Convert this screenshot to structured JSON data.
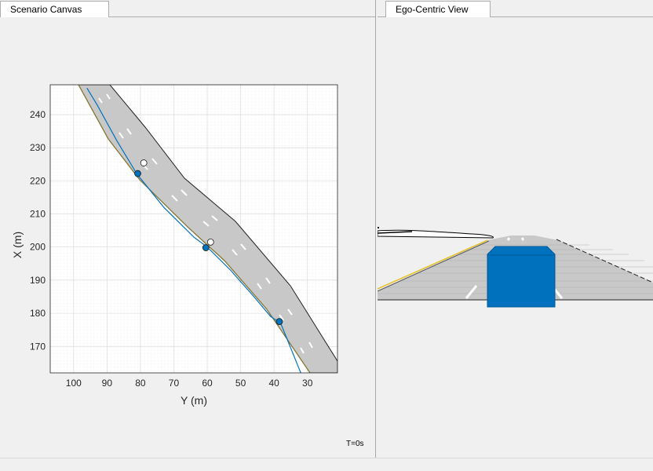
{
  "tabs": {
    "scenario_canvas": "Scenario Canvas",
    "ego_view": "Ego-Centric View"
  },
  "scenario": {
    "xlabel": "Y (m)",
    "ylabel": "X (m)",
    "x_ticks": [
      "100",
      "90",
      "80",
      "70",
      "60",
      "50",
      "40",
      "30"
    ],
    "y_ticks": [
      "240",
      "230",
      "220",
      "210",
      "200",
      "190",
      "180",
      "170"
    ],
    "time_label": "T=0s"
  },
  "chart_data": {
    "type": "scatter",
    "xlabel": "Y (m)",
    "ylabel": "X (m)",
    "xlim": [
      107,
      21
    ],
    "ylim": [
      162,
      249
    ],
    "x_reversed": true,
    "grid": true,
    "road_centerline": [
      [
        98,
        248
      ],
      [
        95,
        243
      ],
      [
        88,
        232
      ],
      [
        80,
        221
      ],
      [
        72,
        211
      ],
      [
        63,
        202
      ],
      [
        57,
        196
      ],
      [
        51,
        190
      ],
      [
        45,
        183
      ],
      [
        40,
        177
      ],
      [
        35,
        170
      ],
      [
        31,
        162
      ]
    ],
    "ego_path": [
      [
        96,
        248
      ],
      [
        93,
        243
      ],
      [
        87,
        232
      ],
      [
        81,
        222
      ],
      [
        73,
        212
      ],
      [
        64,
        203
      ],
      [
        60,
        200
      ],
      [
        53,
        193
      ],
      [
        46,
        185
      ],
      [
        41,
        179
      ],
      [
        38,
        177
      ],
      [
        32,
        162
      ]
    ],
    "waypoints": [
      [
        80.8,
        222.2
      ],
      [
        60.4,
        199.8
      ],
      [
        38.4,
        177.5
      ]
    ],
    "actors": [
      [
        79,
        225.4
      ],
      [
        59,
        201.5
      ]
    ],
    "colors": {
      "road": "#c8c8c8",
      "path": "#0072bd",
      "waypoint_fill": "#0072bd",
      "actor_fill": "#ffffff"
    }
  },
  "ego_view": {
    "colors": {
      "vehicle": "#0072bd",
      "road": "#c8c8c8",
      "yellow_line": "#e8c020"
    }
  }
}
